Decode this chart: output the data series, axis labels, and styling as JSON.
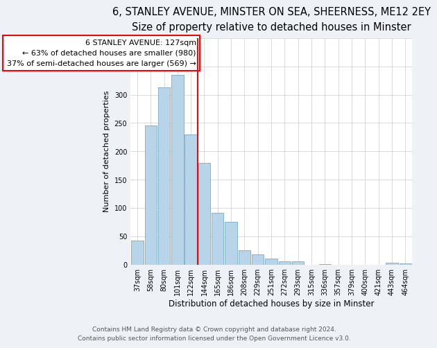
{
  "title1": "6, STANLEY AVENUE, MINSTER ON SEA, SHEERNESS, ME12 2EY",
  "title2": "Size of property relative to detached houses in Minster",
  "xlabel": "Distribution of detached houses by size in Minster",
  "ylabel": "Number of detached properties",
  "bar_labels": [
    "37sqm",
    "58sqm",
    "80sqm",
    "101sqm",
    "122sqm",
    "144sqm",
    "165sqm",
    "186sqm",
    "208sqm",
    "229sqm",
    "251sqm",
    "272sqm",
    "293sqm",
    "315sqm",
    "336sqm",
    "357sqm",
    "379sqm",
    "400sqm",
    "421sqm",
    "443sqm",
    "464sqm"
  ],
  "bar_values": [
    42,
    245,
    313,
    335,
    230,
    180,
    91,
    75,
    25,
    18,
    10,
    5,
    6,
    0,
    1,
    0,
    0,
    0,
    0,
    3,
    2
  ],
  "bar_color": "#b8d4e8",
  "bar_edge_color": "#7aaac8",
  "reference_line_color": "red",
  "annotation_line1": "6 STANLEY AVENUE: 127sqm",
  "annotation_line2": "← 63% of detached houses are smaller (980)",
  "annotation_line3": "37% of semi-detached houses are larger (569) →",
  "annotation_box_color": "white",
  "annotation_box_edge_color": "red",
  "ylim": [
    0,
    400
  ],
  "yticks": [
    0,
    50,
    100,
    150,
    200,
    250,
    300,
    350,
    400
  ],
  "footer1": "Contains HM Land Registry data © Crown copyright and database right 2024.",
  "footer2": "Contains public sector information licensed under the Open Government Licence v3.0.",
  "bg_color": "#eef2f7",
  "plot_bg_color": "white",
  "title1_fontsize": 10.5,
  "title2_fontsize": 9.5,
  "xlabel_fontsize": 8.5,
  "ylabel_fontsize": 8,
  "tick_fontsize": 7,
  "footer_fontsize": 6.5
}
